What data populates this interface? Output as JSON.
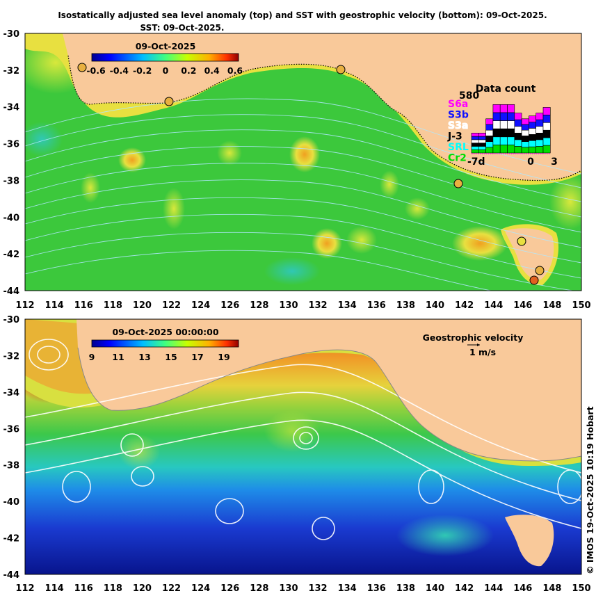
{
  "title_line1": "Isostatically adjusted sea level anomaly (top) and SST with geostrophic velocity (bottom): 09-Oct-2025.",
  "title_line2": "SST: 09-Oct-2025.",
  "credit": "© IMOS 19-Oct-2025 10:19 Hobart",
  "lon_ticks": [
    "112",
    "114",
    "116",
    "118",
    "120",
    "122",
    "124",
    "126",
    "128",
    "130",
    "132",
    "134",
    "136",
    "138",
    "140",
    "142",
    "144",
    "146",
    "148",
    "150"
  ],
  "lat_ticks": [
    "-30",
    "-32",
    "-34",
    "-36",
    "-38",
    "-40",
    "-42",
    "-44"
  ],
  "top_panel": {
    "colorbar_title": "09-Oct-2025",
    "colorbar_ticks": [
      "-0.6",
      "-0.4",
      "-0.2",
      "0",
      "0.2",
      "0.4",
      "0.6"
    ],
    "data_count": {
      "title": "Data count",
      "max_label": "580",
      "satellites": [
        {
          "name": "S6a",
          "color": "#ff00ff"
        },
        {
          "name": "S3b",
          "color": "#1010ff"
        },
        {
          "name": "S3a",
          "color": "#ffffff"
        },
        {
          "name": "J-3",
          "color": "#000000"
        },
        {
          "name": "SRL",
          "color": "#00ffff"
        },
        {
          "name": "Cr2",
          "color": "#00dd00"
        }
      ],
      "x_left": "-7d",
      "x_mid": "0",
      "x_right": "3",
      "bar_totals": [
        0.35,
        0.35,
        0.6,
        0.85,
        0.85,
        0.85,
        0.7,
        0.6,
        0.65,
        0.7,
        0.8
      ]
    }
  },
  "bottom_panel": {
    "colorbar_title": "09-Oct-2025 00:00:00",
    "colorbar_ticks": [
      "9",
      "11",
      "13",
      "15",
      "17",
      "19"
    ],
    "velocity_label": "Geostrophic velocity",
    "velocity_scale": "1 m/s"
  },
  "colors": {
    "land": "#f9c99a",
    "ocean_top": "#3cc83c",
    "ocean_bottom_cold": "#0a1ea0"
  }
}
